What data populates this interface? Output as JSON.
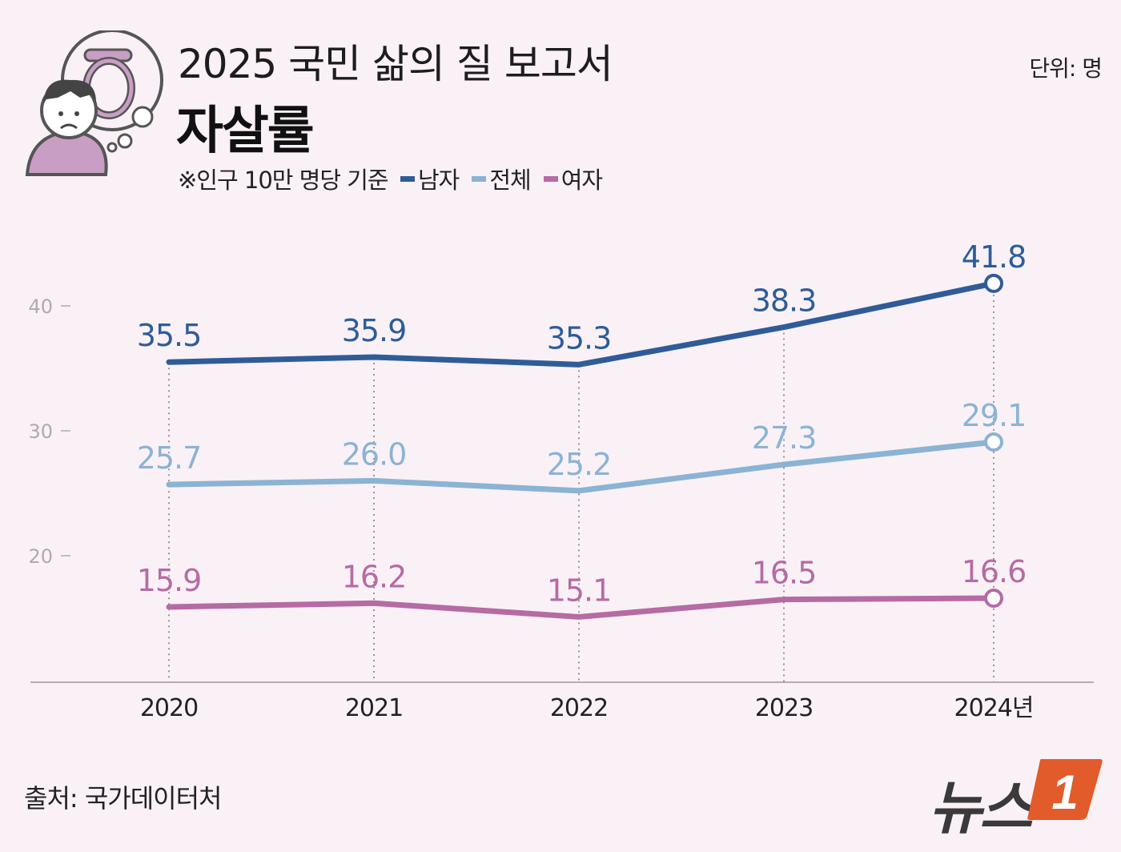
{
  "header": {
    "title": "2025 국민 삶의 질 보고서",
    "subtitle": "자살률",
    "note": "※인구 10만 명당 기준",
    "unit": "단위: 명"
  },
  "source": "출처: 국가데이터처",
  "logo": {
    "text": "뉴스",
    "badge": "1"
  },
  "chart_data": {
    "type": "line",
    "title": "자살률",
    "categories": [
      "2020",
      "2021",
      "2022",
      "2023",
      "2024년"
    ],
    "ylim": [
      10,
      48
    ],
    "yticks": [
      20,
      30,
      40
    ],
    "grid": false,
    "legend": "top-left",
    "series": [
      {
        "name": "남자",
        "color": "#2f5c98",
        "values": [
          35.5,
          35.9,
          35.3,
          38.3,
          41.8
        ],
        "labels": [
          "35.5",
          "35.9",
          "35.3",
          "38.3",
          "41.8"
        ]
      },
      {
        "name": "전체",
        "color": "#8bb3d3",
        "values": [
          25.7,
          26.0,
          25.2,
          27.3,
          29.1
        ],
        "labels": [
          "25.7",
          "26.0",
          "25.2",
          "27.3",
          "29.1"
        ]
      },
      {
        "name": "여자",
        "color": "#b66ba4",
        "values": [
          15.9,
          16.2,
          15.1,
          16.5,
          16.6
        ],
        "labels": [
          "15.9",
          "16.2",
          "15.1",
          "16.5",
          "16.6"
        ]
      }
    ]
  }
}
